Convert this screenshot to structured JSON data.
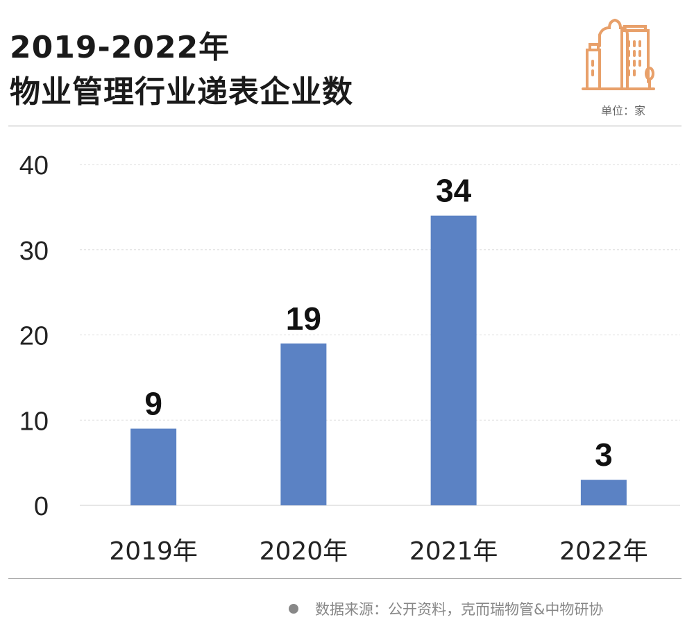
{
  "header": {
    "title_line1": "2019-2022年",
    "title_line2": "物业管理行业递表企业数",
    "unit": "单位：家",
    "icon": "city-buildings-icon",
    "icon_color": "#E8A06A"
  },
  "footer": {
    "source": "数据来源：公开资料，克而瑞物管&中物研协"
  },
  "chart_data": {
    "type": "bar",
    "categories": [
      "2019年",
      "2020年",
      "2021年",
      "2022年"
    ],
    "values": [
      9,
      19,
      34,
      3
    ],
    "data_labels": [
      "9",
      "19",
      "34",
      "3"
    ],
    "ylim": [
      0,
      40
    ],
    "yticks": [
      "0",
      "10",
      "20",
      "30",
      "40"
    ],
    "grid": true,
    "bar_color": "#5B82C4"
  }
}
